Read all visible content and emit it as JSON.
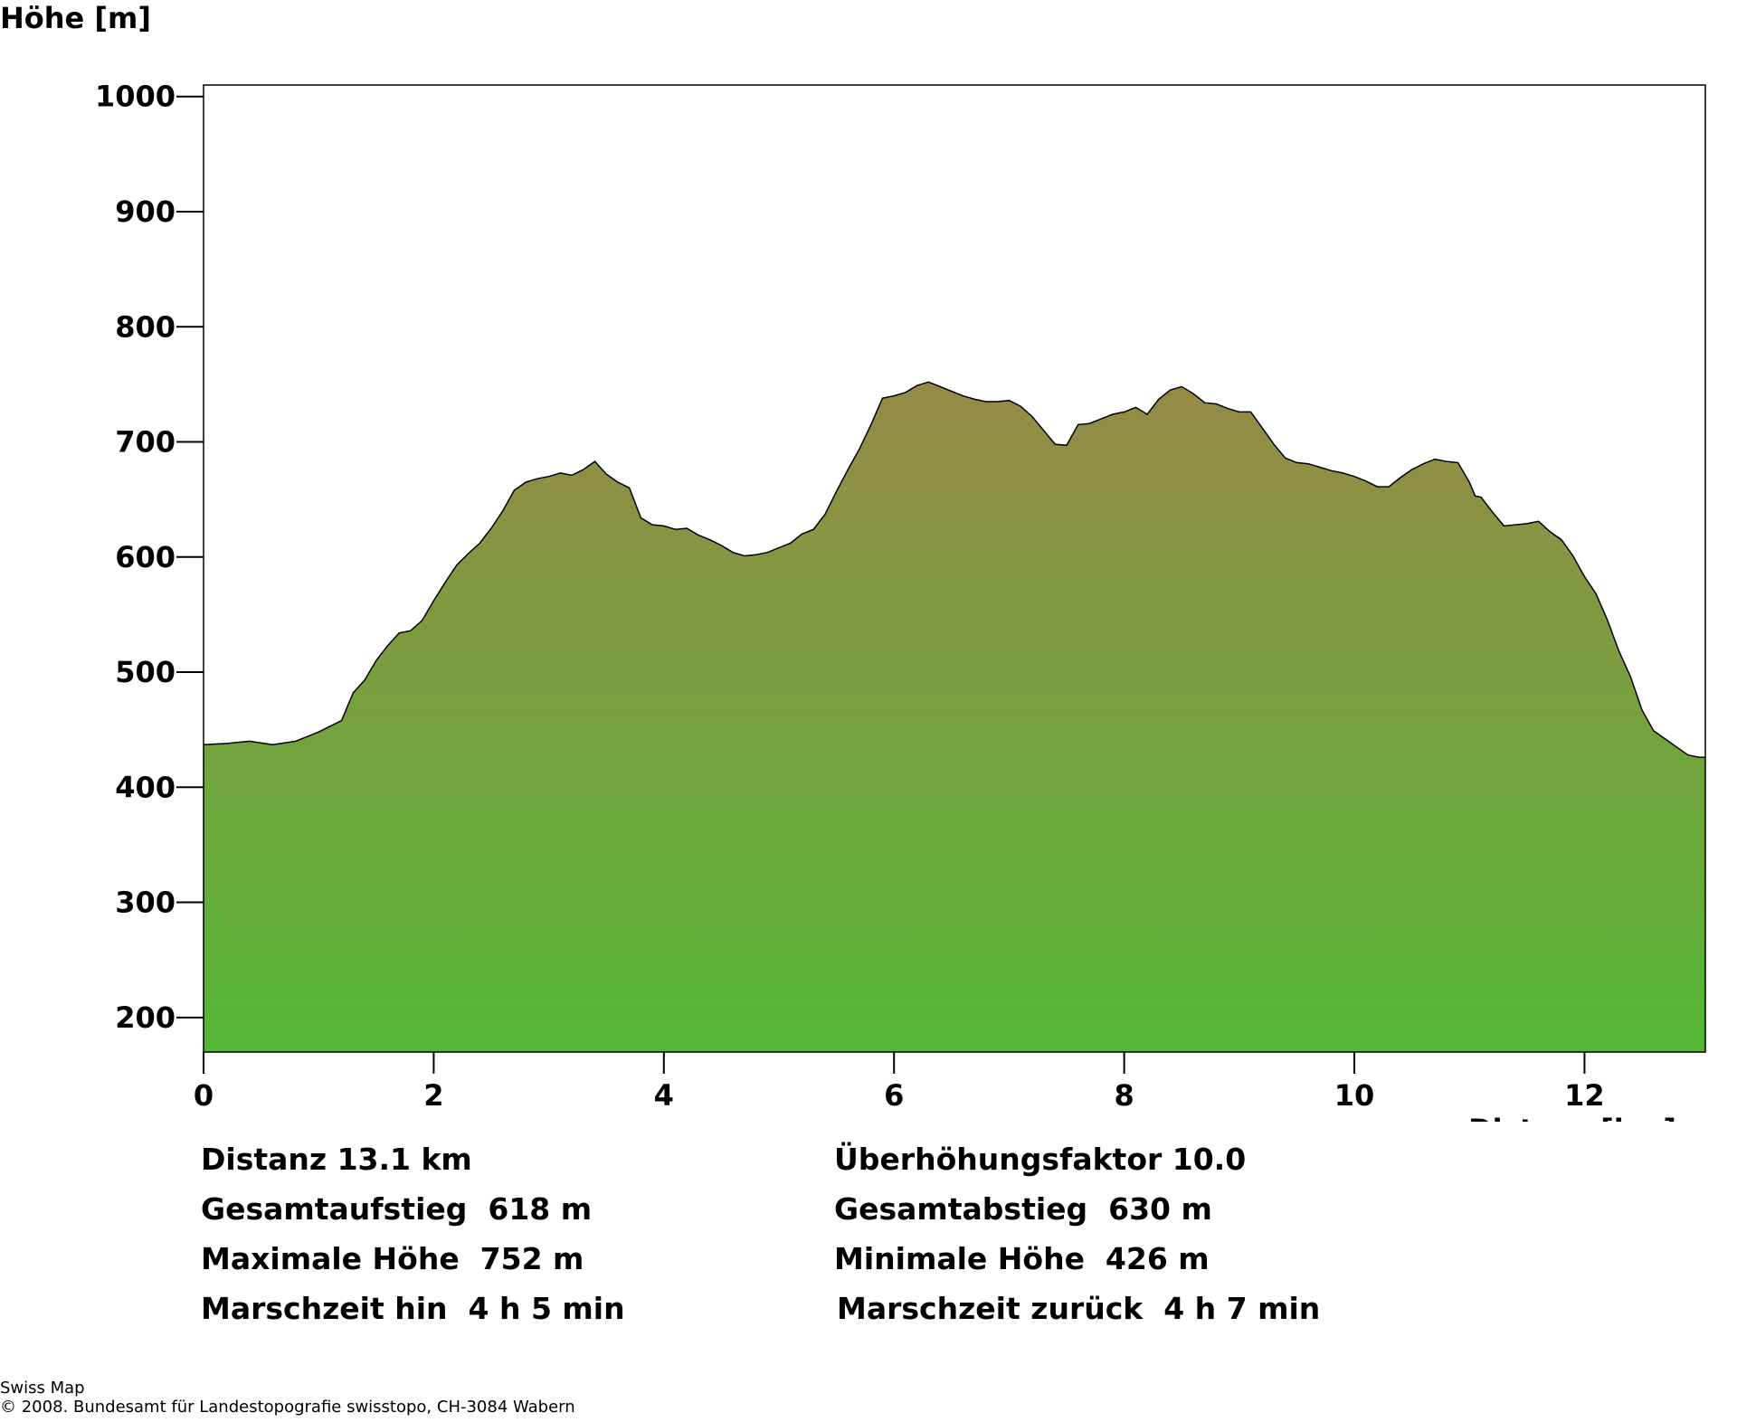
{
  "chart_data": {
    "type": "area",
    "ylabel": "Höhe [m]",
    "xlabel": "Distanz [km]",
    "xlim": [
      0,
      13.05
    ],
    "ylim": [
      170,
      1010
    ],
    "x_ticks": [
      0,
      2,
      4,
      6,
      8,
      10,
      12
    ],
    "y_ticks": [
      200,
      300,
      400,
      500,
      600,
      700,
      800,
      900,
      1000
    ],
    "grid": false,
    "colors": {
      "top": "#968a47",
      "bottom": "#55b735",
      "outline": "#000000"
    },
    "x": [
      0,
      0.2,
      0.4,
      0.6,
      0.8,
      1.0,
      1.2,
      1.3,
      1.4,
      1.5,
      1.6,
      1.7,
      1.8,
      1.9,
      2.0,
      2.1,
      2.2,
      2.3,
      2.4,
      2.5,
      2.6,
      2.7,
      2.8,
      2.9,
      3.0,
      3.1,
      3.2,
      3.3,
      3.4,
      3.5,
      3.6,
      3.7,
      3.8,
      3.9,
      4.0,
      4.1,
      4.2,
      4.3,
      4.4,
      4.5,
      4.6,
      4.7,
      4.8,
      4.9,
      5.0,
      5.1,
      5.2,
      5.3,
      5.4,
      5.5,
      5.6,
      5.7,
      5.8,
      5.9,
      6.0,
      6.1,
      6.2,
      6.3,
      6.4,
      6.5,
      6.6,
      6.7,
      6.8,
      6.9,
      7.0,
      7.1,
      7.2,
      7.3,
      7.4,
      7.5,
      7.6,
      7.7,
      7.8,
      7.9,
      8.0,
      8.1,
      8.2,
      8.3,
      8.4,
      8.5,
      8.6,
      8.7,
      8.8,
      8.9,
      9.0,
      9.1,
      9.2,
      9.3,
      9.4,
      9.5,
      9.6,
      9.7,
      9.8,
      9.9,
      10.0,
      10.1,
      10.2,
      10.3,
      10.4,
      10.5,
      10.6,
      10.7,
      10.8,
      10.9,
      11.0,
      11.05,
      11.1,
      11.2,
      11.3,
      11.4,
      11.5,
      11.6,
      11.7,
      11.8,
      11.9,
      12.0,
      12.1,
      12.2,
      12.3,
      12.4,
      12.5,
      12.6,
      12.7,
      12.8,
      12.9,
      13.0,
      13.05
    ],
    "values": [
      437,
      438,
      440,
      437,
      440,
      448,
      458,
      482,
      493,
      510,
      523,
      534,
      536,
      545,
      562,
      578,
      593,
      603,
      612,
      625,
      640,
      658,
      665,
      668,
      670,
      673,
      671,
      676,
      683,
      672,
      665,
      660,
      634,
      628,
      627,
      624,
      625,
      619,
      615,
      610,
      604,
      601,
      602,
      604,
      608,
      612,
      620,
      624,
      637,
      657,
      676,
      694,
      715,
      738,
      740,
      743,
      749,
      752,
      748,
      744,
      740,
      737,
      735,
      735,
      736,
      731,
      722,
      710,
      698,
      697,
      715,
      716,
      720,
      724,
      726,
      730,
      724,
      737,
      745,
      748,
      742,
      734,
      733,
      729,
      726,
      726,
      712,
      698,
      686,
      682,
      681,
      678,
      675,
      673,
      670,
      666,
      661,
      661,
      669,
      676,
      681,
      685,
      683,
      682,
      665,
      653,
      652,
      639,
      627,
      628,
      629,
      631,
      622,
      615,
      601,
      583,
      568,
      545,
      518,
      496,
      467,
      449,
      442,
      435,
      428,
      426,
      426
    ]
  },
  "stats": {
    "distanz": "Distanz 13.1 km",
    "ueberhoehung": "Überhöhungsfaktor 10.0",
    "aufstieg": "Gesamtaufstieg  618 m",
    "abstieg": "Gesamtabstieg  630 m",
    "max_hoehe": "Maximale Höhe  752 m",
    "min_hoehe": "Minimale Höhe  426 m",
    "marsch_hin": "Marschzeit hin  4 h 5 min",
    "marsch_zurueck": "Marschzeit zurück  4 h 7 min"
  },
  "credits": {
    "line1": "Swiss Map",
    "line2": "© 2008. Bundesamt für Landestopografie swisstopo, CH-3084 Wabern"
  }
}
